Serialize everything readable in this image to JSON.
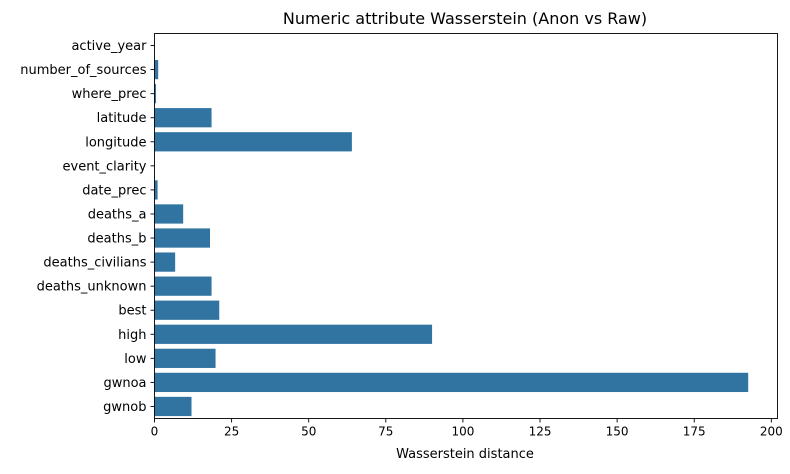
{
  "chart_data": {
    "type": "bar",
    "orientation": "horizontal",
    "title": "Numeric attribute Wasserstein (Anon vs Raw)",
    "xlabel": "Wasserstein distance",
    "ylabel": "",
    "xlim": [
      0,
      202
    ],
    "xticks": [
      0,
      25,
      50,
      75,
      100,
      125,
      150,
      175,
      200
    ],
    "grid": false,
    "bar_color": "#3274a1",
    "categories": [
      "active_year",
      "number_of_sources",
      "where_prec",
      "latitude",
      "longitude",
      "event_clarity",
      "date_prec",
      "deaths_a",
      "deaths_b",
      "deaths_civilians",
      "deaths_unknown",
      "best",
      "high",
      "low",
      "gwnoa",
      "gwnob"
    ],
    "values": [
      0,
      1.2,
      0.5,
      18.5,
      64,
      0,
      1,
      9.3,
      18,
      6.7,
      18.5,
      21,
      90,
      19.8,
      192.5,
      12
    ]
  }
}
